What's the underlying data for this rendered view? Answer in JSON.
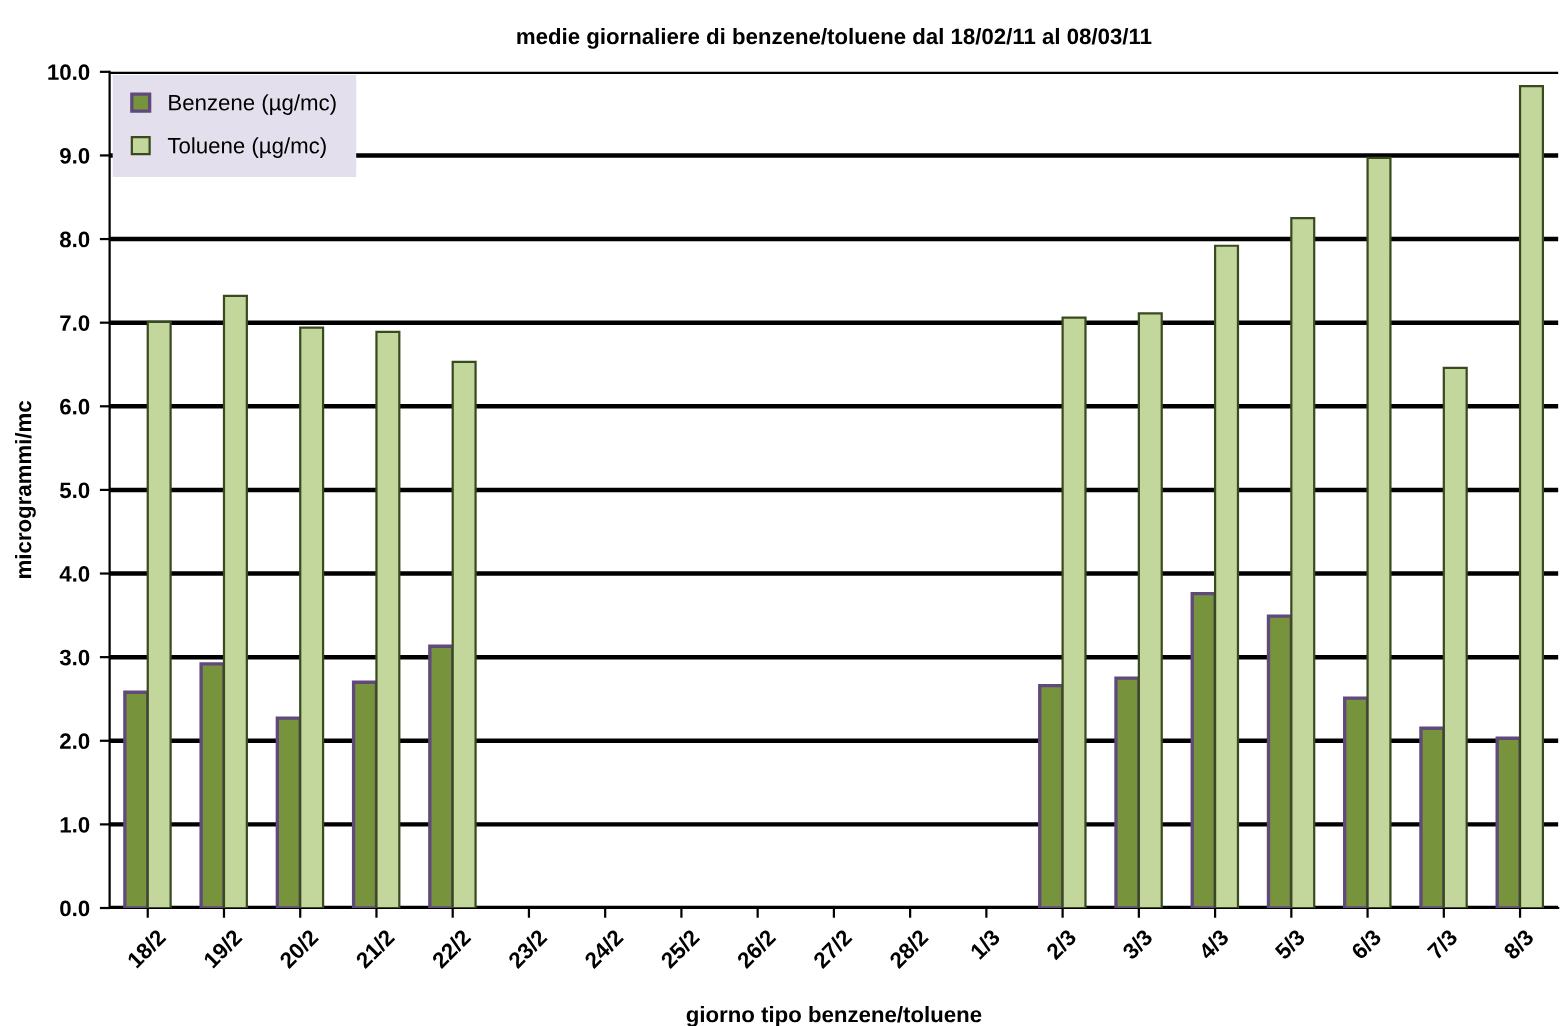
{
  "chart_data": {
    "type": "bar",
    "title": "medie giornaliere di benzene/toluene dal 18/02/11 al 08/03/11",
    "xlabel": "giorno tipo benzene/toluene",
    "ylabel": "microgrammi/mc",
    "categories": [
      "18/2",
      "19/2",
      "20/2",
      "21/2",
      "22/2",
      "23/2",
      "24/2",
      "25/2",
      "26/2",
      "27/2",
      "28/2",
      "1/3",
      "2/3",
      "3/3",
      "4/3",
      "5/3",
      "6/3",
      "7/3",
      "8/3"
    ],
    "series": [
      {
        "name": "Benzene (µg/mc)",
        "color": "#77933c",
        "values": [
          2.58,
          2.92,
          2.27,
          2.7,
          3.13,
          null,
          null,
          null,
          null,
          null,
          null,
          null,
          2.66,
          2.75,
          3.76,
          3.49,
          2.51,
          2.15,
          2.03
        ]
      },
      {
        "name": "Toluene (µg/mc)",
        "color": "#c3d69b",
        "values": [
          7.01,
          7.32,
          6.94,
          6.89,
          6.53,
          null,
          null,
          null,
          null,
          null,
          null,
          null,
          7.06,
          7.11,
          7.92,
          8.25,
          8.97,
          6.46,
          9.83
        ]
      }
    ],
    "ylim": [
      0,
      10
    ],
    "yticks": [
      {
        "value": 0,
        "label": "0.0"
      },
      {
        "value": 1,
        "label": "1.0"
      },
      {
        "value": 2,
        "label": "2.0"
      },
      {
        "value": 3,
        "label": "3.0"
      },
      {
        "value": 4,
        "label": "4.0"
      },
      {
        "value": 5,
        "label": "5.0"
      },
      {
        "value": 6,
        "label": "6.0"
      },
      {
        "value": 7,
        "label": "7.0"
      },
      {
        "value": 8,
        "label": "8.0"
      },
      {
        "value": 9,
        "label": "9.0"
      },
      {
        "value": 10,
        "label": "10.0"
      }
    ],
    "grid": "y",
    "legend": "top left"
  }
}
